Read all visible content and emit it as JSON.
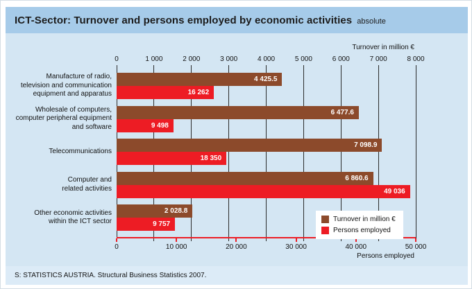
{
  "header": {
    "title": "ICT-Sector: Turnover and persons employed by economic activities",
    "subtitle": "absolute"
  },
  "footer": {
    "source": "S: STATISTICS AUSTRIA. Structural Business Statistics 2007."
  },
  "colors": {
    "title_bar": "#a6cbe9",
    "panel": "#d4e6f3",
    "footer_strip": "#dcebf7",
    "turnover": "#8c4a2b",
    "persons": "#ed1c24",
    "gridline": "#2b2b2b"
  },
  "chart_data": {
    "type": "bar",
    "orientation": "horizontal",
    "grid": true,
    "categories": [
      [
        "Manufacture of radio,",
        "television and communication",
        "equipment and apparatus"
      ],
      [
        "Wholesale of computers,",
        "computer peripheral equipment",
        "and software"
      ],
      [
        "Telecommunications"
      ],
      [
        "Computer and",
        "related activities"
      ],
      [
        "Other economic activities",
        "within the ICT sector"
      ]
    ],
    "series": [
      {
        "name": "Turnover in million €",
        "axis": "top",
        "color": "#8c4a2b",
        "values": [
          4425.5,
          6477.6,
          7098.9,
          6860.6,
          2028.8
        ],
        "labels": [
          "4 425.5",
          "6 477.6",
          "7 098.9",
          "6 860.6",
          "2 028.8"
        ]
      },
      {
        "name": "Persons employed",
        "axis": "bottom",
        "color": "#ed1c24",
        "values": [
          16262,
          9498,
          18350,
          49036,
          9757
        ],
        "labels": [
          "16 262",
          "9 498",
          "18 350",
          "49 036",
          "9 757"
        ]
      }
    ],
    "top_axis": {
      "label": "Turnover in million €",
      "min": 0,
      "max": 8000,
      "ticks": [
        "0",
        "1 000",
        "2 000",
        "3 000",
        "4 000",
        "5 000",
        "6 000",
        "7 000",
        "8 000"
      ]
    },
    "bottom_axis": {
      "label": "Persons employed",
      "min": 0,
      "max": 50000,
      "color": "#ed1c24",
      "ticks": [
        "0",
        "10 000",
        "20 000",
        "30 000",
        "40 000",
        "50 000"
      ]
    },
    "legend": {
      "position": "bottom-right",
      "entries": [
        "Turnover in million €",
        "Persons employed"
      ]
    }
  }
}
